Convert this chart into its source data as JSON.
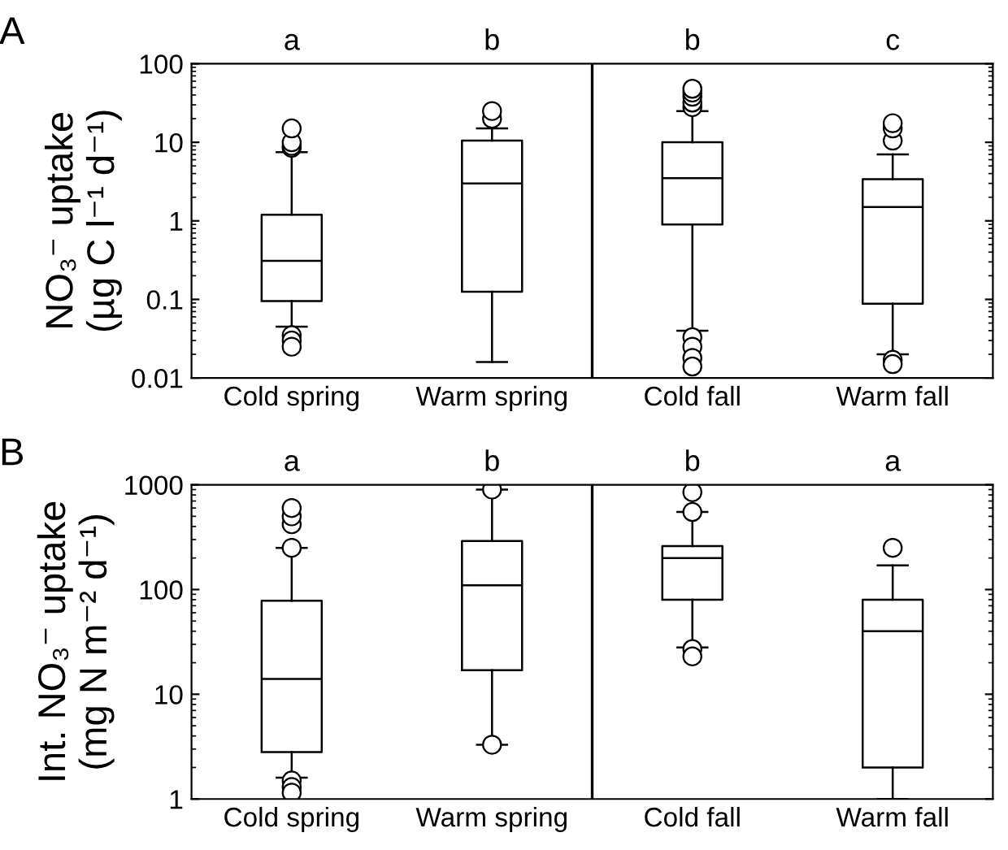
{
  "chart_data": [
    {
      "type": "box",
      "title": "A",
      "ylabel": "NO₃⁻ uptake\n(µg C l⁻¹ d⁻¹)",
      "log": true,
      "grid": false,
      "categories": [
        "Cold spring",
        "Warm spring",
        "Cold fall",
        "Warm fall"
      ],
      "ylim": [
        0.01,
        100
      ],
      "yticks": [
        0.01,
        0.1,
        1,
        10,
        100
      ],
      "annotations": [
        "a",
        "b",
        "b",
        "c"
      ],
      "boxes": [
        {
          "low": 0.045,
          "q1": 0.095,
          "median": 0.31,
          "q3": 1.2,
          "high": 7.5,
          "outliers": [
            8.5,
            9,
            10,
            15,
            0.035,
            0.03,
            0.025
          ]
        },
        {
          "low": 0.016,
          "q1": 0.125,
          "median": 3,
          "q3": 10.5,
          "high": 15,
          "outliers": [
            20,
            25
          ]
        },
        {
          "low": 0.04,
          "q1": 0.9,
          "median": 3.5,
          "q3": 10,
          "high": 25,
          "outliers": [
            28,
            32,
            38,
            43,
            48,
            0.033,
            0.025,
            0.018,
            0.014
          ]
        },
        {
          "low": 0.02,
          "q1": 0.088,
          "median": 1.5,
          "q3": 3.4,
          "high": 7,
          "outliers": [
            10.5,
            15,
            17.5,
            0.017,
            0.015
          ]
        }
      ]
    },
    {
      "type": "box",
      "title": "B",
      "ylabel": "Int. NO₃⁻ uptake\n(mg N m⁻² d⁻¹)",
      "log": true,
      "grid": false,
      "categories": [
        "Cold spring",
        "Warm spring",
        "Cold fall",
        "Warm fall"
      ],
      "ylim": [
        1,
        1000
      ],
      "yticks": [
        1,
        10,
        100,
        1000
      ],
      "annotations": [
        "a",
        "b",
        "b",
        "a"
      ],
      "boxes": [
        {
          "low": 1.6,
          "q1": 2.8,
          "median": 14,
          "q3": 78,
          "high": 250,
          "outliers": [
            250,
            420,
            500,
            600,
            1.5,
            1.3,
            1.15
          ]
        },
        {
          "low": 3.3,
          "q1": 17,
          "median": 110,
          "q3": 290,
          "high": 900,
          "outliers": [
            900,
            3.3
          ]
        },
        {
          "low": 28,
          "q1": 80,
          "median": 200,
          "q3": 260,
          "high": 550,
          "outliers": [
            850,
            550,
            27,
            23
          ]
        },
        {
          "low": 1,
          "q1": 2,
          "median": 40,
          "q3": 80,
          "high": 170,
          "outliers": [
            250
          ]
        }
      ]
    }
  ]
}
